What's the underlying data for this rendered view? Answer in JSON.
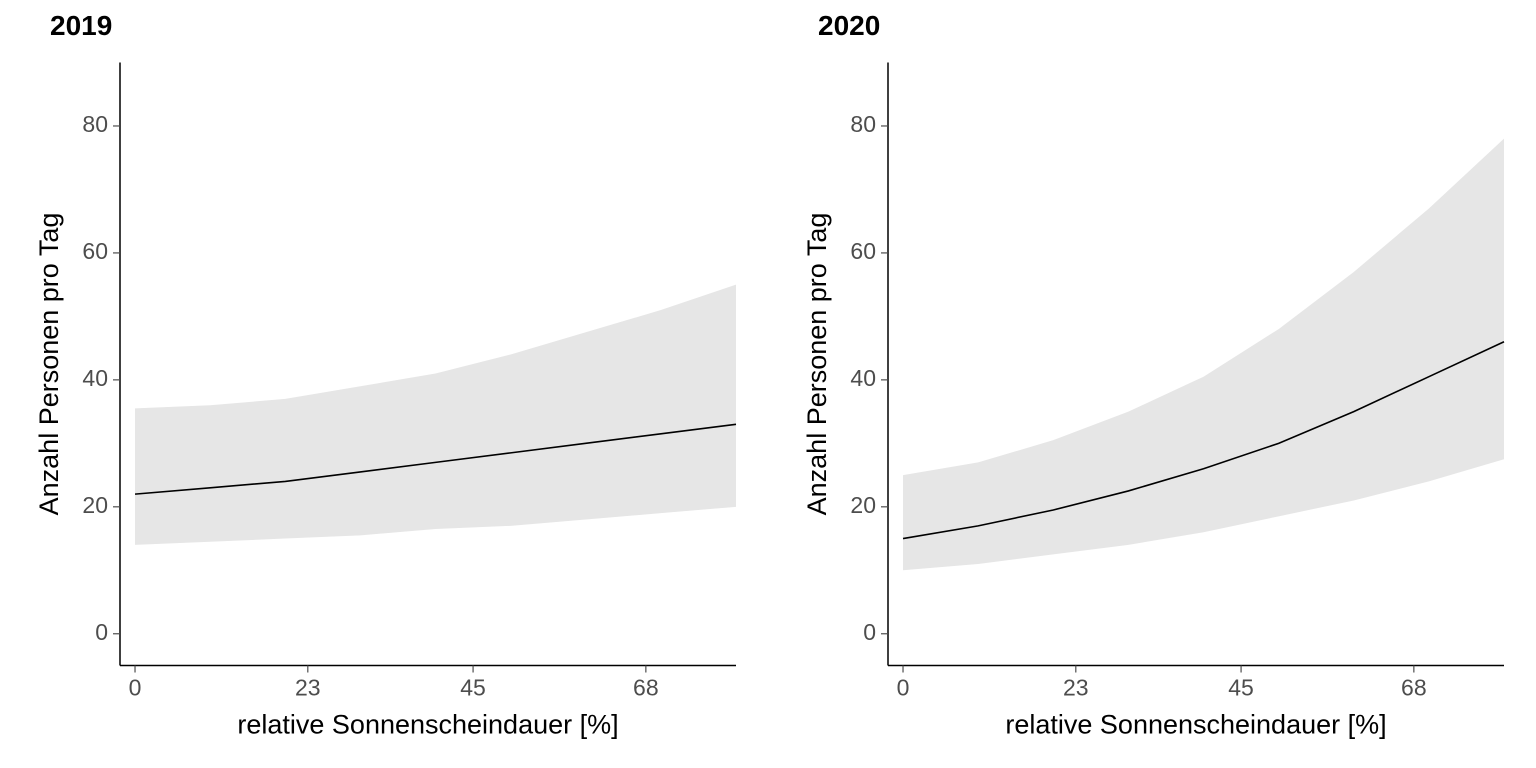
{
  "panels": [
    {
      "title": "2019",
      "type": "line",
      "xlabel": "relative Sonnenscheindauer [%]",
      "ylabel": "Anzahl Personen pro Tag",
      "xlim": [
        -2,
        80
      ],
      "ylim": [
        -5,
        90
      ],
      "xticks": [
        0,
        23,
        45,
        68
      ],
      "yticks": [
        0,
        20,
        40,
        60,
        80
      ],
      "background_color": "#ffffff",
      "ribbon_color": "#e6e6e6",
      "line_color": "#000000",
      "grid": false,
      "axis_fontsize": 27,
      "tick_fontsize": 23,
      "tick_color": "#4d4d4d",
      "title_fontsize": 28,
      "title_fontweight": "bold",
      "line_width": 1.6,
      "series": {
        "x": [
          0,
          10,
          20,
          30,
          40,
          50,
          60,
          70,
          80
        ],
        "y": [
          22,
          23,
          24,
          25.5,
          27,
          28.5,
          30,
          31.5,
          33
        ],
        "lower": [
          14,
          14.5,
          15,
          15.5,
          16.5,
          17,
          18,
          19,
          20
        ],
        "upper": [
          35.5,
          36,
          37,
          39,
          41,
          44,
          47.5,
          51,
          55
        ]
      }
    },
    {
      "title": "2020",
      "type": "line",
      "xlabel": "relative Sonnenscheindauer [%]",
      "ylabel": "Anzahl Personen pro Tag",
      "xlim": [
        -2,
        80
      ],
      "ylim": [
        -5,
        90
      ],
      "xticks": [
        0,
        23,
        45,
        68
      ],
      "yticks": [
        0,
        20,
        40,
        60,
        80
      ],
      "background_color": "#ffffff",
      "ribbon_color": "#e6e6e6",
      "line_color": "#000000",
      "grid": false,
      "axis_fontsize": 27,
      "tick_fontsize": 23,
      "tick_color": "#4d4d4d",
      "title_fontsize": 28,
      "title_fontweight": "bold",
      "line_width": 1.6,
      "series": {
        "x": [
          0,
          10,
          20,
          30,
          40,
          50,
          60,
          70,
          80
        ],
        "y": [
          15,
          17,
          19.5,
          22.5,
          26,
          30,
          35,
          40.5,
          46
        ],
        "lower": [
          10,
          11,
          12.5,
          14,
          16,
          18.5,
          21,
          24,
          27.5
        ],
        "upper": [
          25,
          27,
          30.5,
          35,
          40.5,
          48,
          57,
          67,
          78
        ]
      }
    }
  ]
}
